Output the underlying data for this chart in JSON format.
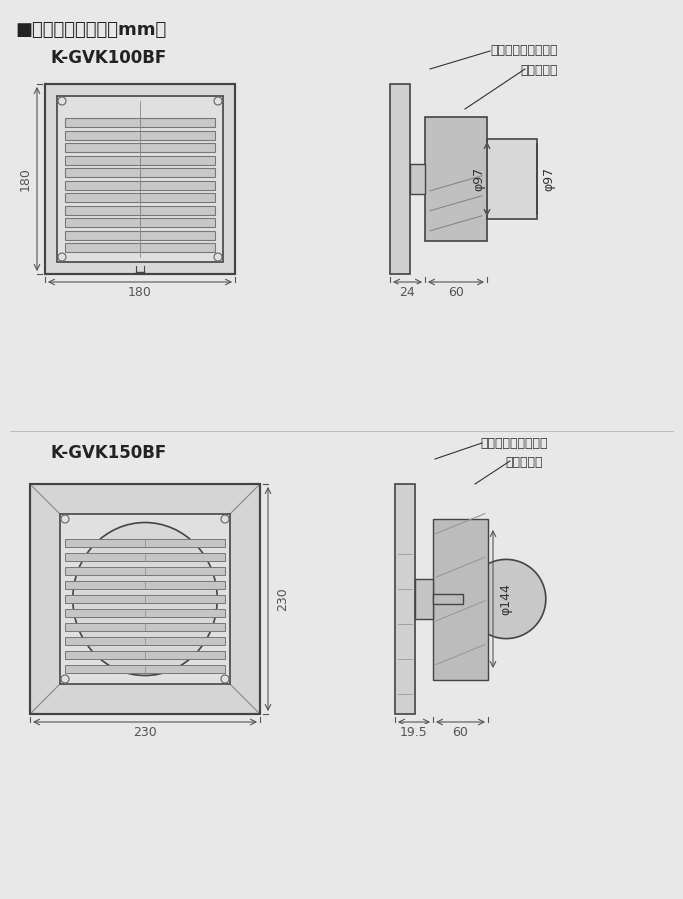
{
  "bg_color": "#e8e8e8",
  "title_text": "■外形寸法（単位：mm）",
  "title_font_size": 13,
  "model1": "K-GVK100BF",
  "model2": "K-GVK150BF",
  "model_font_size": 12,
  "line_color": "#555555",
  "dim_color": "#555555",
  "annotation_color": "#333333",
  "grill_color": "#888888",
  "light_gray": "#cccccc",
  "dark_line": "#444444"
}
